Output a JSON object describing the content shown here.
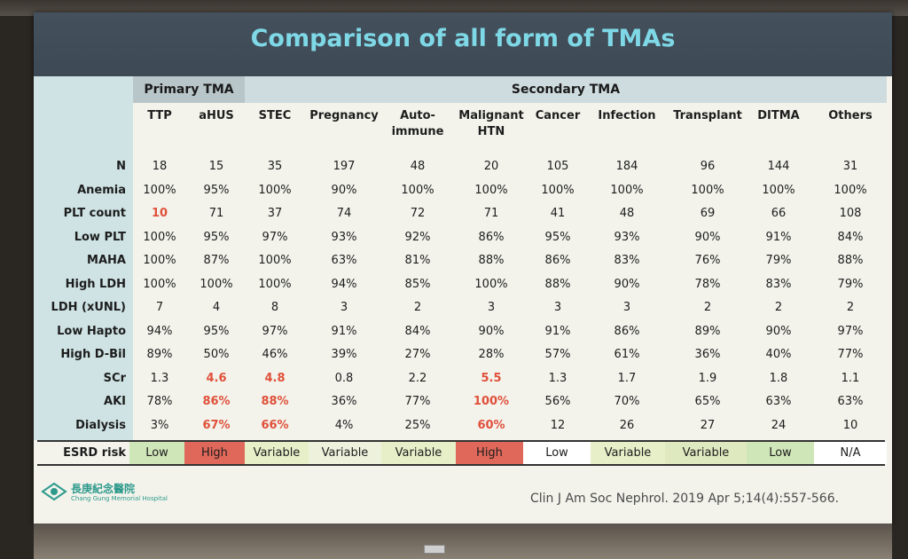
{
  "title": "Comparison of all form of TMAs",
  "groups": {
    "primary": "Primary TMA",
    "secondary": "Secondary TMA"
  },
  "columns": [
    [
      "TTP"
    ],
    [
      "aHUS"
    ],
    [
      "STEC"
    ],
    [
      "Pregnancy"
    ],
    [
      "Auto-",
      "immune"
    ],
    [
      "Malignant",
      "HTN"
    ],
    [
      "Cancer"
    ],
    [
      "Infection"
    ],
    [
      "Transplant"
    ],
    [
      "DITMA"
    ],
    [
      "Others"
    ]
  ],
  "rows": [
    {
      "label": "N",
      "values": [
        "18",
        "15",
        "35",
        "197",
        "48",
        "20",
        "105",
        "184",
        "96",
        "144",
        "31"
      ],
      "red": []
    },
    {
      "label": "Anemia",
      "values": [
        "100%",
        "95%",
        "100%",
        "90%",
        "100%",
        "100%",
        "100%",
        "100%",
        "100%",
        "100%",
        "100%"
      ],
      "red": []
    },
    {
      "label": "PLT count",
      "values": [
        "10",
        "71",
        "37",
        "74",
        "72",
        "71",
        "41",
        "48",
        "69",
        "66",
        "108"
      ],
      "red": [
        0
      ]
    },
    {
      "label": "Low PLT",
      "values": [
        "100%",
        "95%",
        "97%",
        "93%",
        "92%",
        "86%",
        "95%",
        "93%",
        "90%",
        "91%",
        "84%"
      ],
      "red": []
    },
    {
      "label": "MAHA",
      "values": [
        "100%",
        "87%",
        "100%",
        "63%",
        "81%",
        "88%",
        "86%",
        "83%",
        "76%",
        "79%",
        "88%"
      ],
      "red": []
    },
    {
      "label": "High LDH",
      "values": [
        "100%",
        "100%",
        "100%",
        "94%",
        "85%",
        "100%",
        "88%",
        "90%",
        "78%",
        "83%",
        "79%"
      ],
      "red": []
    },
    {
      "label": "LDH (xUNL)",
      "values": [
        "7",
        "4",
        "8",
        "3",
        "2",
        "3",
        "3",
        "3",
        "2",
        "2",
        "2"
      ],
      "red": []
    },
    {
      "label": "Low Hapto",
      "values": [
        "94%",
        "95%",
        "97%",
        "91%",
        "84%",
        "90%",
        "91%",
        "86%",
        "89%",
        "90%",
        "97%"
      ],
      "red": []
    },
    {
      "label": "High D-Bil",
      "values": [
        "89%",
        "50%",
        "46%",
        "39%",
        "27%",
        "28%",
        "57%",
        "61%",
        "36%",
        "40%",
        "77%"
      ],
      "red": []
    },
    {
      "label": "SCr",
      "values": [
        "1.3",
        "4.6",
        "4.8",
        "0.8",
        "2.2",
        "5.5",
        "1.3",
        "1.7",
        "1.9",
        "1.8",
        "1.1"
      ],
      "red": [
        1,
        2,
        5
      ]
    },
    {
      "label": "AKI",
      "values": [
        "78%",
        "86%",
        "88%",
        "36%",
        "77%",
        "100%",
        "56%",
        "70%",
        "65%",
        "63%",
        "63%"
      ],
      "red": [
        1,
        2,
        5
      ]
    },
    {
      "label": "Dialysis",
      "values": [
        "3%",
        "67%",
        "66%",
        "4%",
        "25%",
        "60%",
        "12",
        "26",
        "27",
        "24",
        "10"
      ],
      "red": [
        1,
        2,
        5
      ]
    }
  ],
  "esrd": {
    "label": "ESRD risk",
    "values": [
      "Low",
      "High",
      "Variable",
      "Variable",
      "Variable",
      "High",
      "Low",
      "Variable",
      "Variable",
      "Low",
      "N/A"
    ],
    "colors": [
      "#cfe6b8",
      "#e0685a",
      "#e6efc8",
      "#eef2dc",
      "#e6efc8",
      "#e0685a",
      "#ffffff",
      "#e6efc8",
      "#dfe9c0",
      "#cfe6b8",
      "#ffffff"
    ]
  },
  "citation": "Clin J Am Soc Nephrol. 2019 Apr 5;14(4):557-566.",
  "logo": {
    "name": "長庚紀念醫院",
    "sub": "Chang Gung Memorial Hospital"
  }
}
